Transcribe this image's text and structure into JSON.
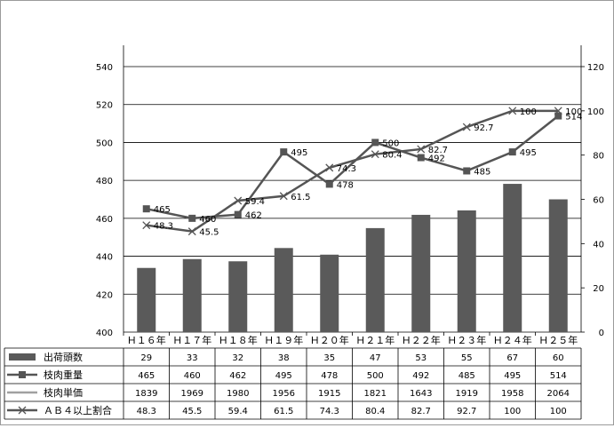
{
  "chart_data": {
    "type": "combo-bar-line-with-table",
    "categories": [
      "Ｈ１６年",
      "Ｈ１７年",
      "Ｈ１８年",
      "Ｈ１９年",
      "Ｈ２０年",
      "Ｈ２１年",
      "Ｈ２２年",
      "Ｈ２３年",
      "Ｈ２４年",
      "Ｈ２５年"
    ],
    "y_left": {
      "min": 400,
      "max": 540,
      "step": 20,
      "ticks": [
        "400",
        "420",
        "440",
        "460",
        "480",
        "500",
        "520",
        "540"
      ]
    },
    "y_right": {
      "min": 0,
      "max": 120,
      "step": 20,
      "ticks": [
        "0",
        "20",
        "40",
        "60",
        "80",
        "100",
        "120"
      ]
    },
    "grid": true,
    "legend": "table-left",
    "series": [
      {
        "name": "出荷頭数",
        "kind": "bar",
        "axis": "right",
        "color": "#5a5a5a",
        "values": [
          29,
          33,
          32,
          38,
          35,
          47,
          53,
          55,
          67,
          60
        ],
        "labels": [
          "29",
          "33",
          "32",
          "38",
          "35",
          "47",
          "53",
          "55",
          "67",
          "60"
        ]
      },
      {
        "name": "枝肉重量",
        "kind": "line-square",
        "axis": "left",
        "color": "#555555",
        "values": [
          465,
          460,
          462,
          495,
          478,
          500,
          492,
          485,
          495,
          514
        ],
        "labels": [
          "465",
          "460",
          "462",
          "495",
          "478",
          "500",
          "492",
          "485",
          "495",
          "514"
        ]
      },
      {
        "name": "枝肉単価",
        "kind": "line",
        "axis": "none",
        "color": "#a0a0a0",
        "values": [
          1839,
          1969,
          1980,
          1956,
          1915,
          1821,
          1643,
          1919,
          1958,
          2064
        ],
        "labels": [
          "1839",
          "1969",
          "1980",
          "1956",
          "1915",
          "1821",
          "1643",
          "1919",
          "1958",
          "2064"
        ]
      },
      {
        "name": "ＡＢ４以上割合",
        "kind": "line-x",
        "axis": "right",
        "color": "#555555",
        "values": [
          48.3,
          45.5,
          59.4,
          61.5,
          74.3,
          80.4,
          82.7,
          92.7,
          100,
          100
        ],
        "labels": [
          "48.3",
          "45.5",
          "59.4",
          "61.5",
          "74.3",
          "80.4",
          "82.7",
          "92.7",
          "100",
          "100"
        ]
      }
    ]
  }
}
